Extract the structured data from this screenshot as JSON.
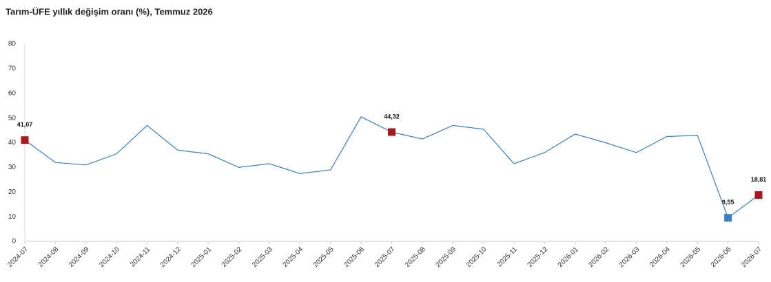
{
  "chart_data": {
    "type": "line",
    "title": "Tarım-ÜFE yıllık değişim oranı (%), Temmuz 2026",
    "categories": [
      "2024-07",
      "2024-08",
      "2024-09",
      "2024-10",
      "2024-11",
      "2024-12",
      "2025-01",
      "2025-02",
      "2025-03",
      "2025-04",
      "2025-05",
      "2025-06",
      "2025-07",
      "2025-08",
      "2025-09",
      "2025-10",
      "2025-11",
      "2025-12",
      "2026-01",
      "2026-02",
      "2026-03",
      "2026-04",
      "2026-05",
      "2026-06",
      "2026-07"
    ],
    "series": [
      {
        "color": "#3a7fc1",
        "values": [
          41.07,
          32,
          31,
          35.5,
          47,
          37,
          35.5,
          30,
          31.5,
          27.5,
          29,
          50.5,
          44.32,
          41.5,
          47,
          45.5,
          31.5,
          36,
          43.5,
          40,
          36,
          42.5,
          43,
          9.55,
          18.81
        ],
        "value_labels": [
          "41,07",
          null,
          null,
          null,
          null,
          null,
          null,
          null,
          null,
          null,
          null,
          null,
          "44,32",
          null,
          null,
          null,
          null,
          null,
          null,
          null,
          null,
          null,
          null,
          "9,55",
          "18,81"
        ],
        "marker_colors": [
          "#a8191e",
          null,
          null,
          null,
          null,
          null,
          null,
          null,
          null,
          null,
          null,
          null,
          "#a8191e",
          null,
          null,
          null,
          null,
          null,
          null,
          null,
          null,
          null,
          null,
          "#3a7fc1",
          "#a8191e"
        ]
      }
    ],
    "ylim": [
      0,
      80
    ],
    "yticks": [
      0,
      10,
      20,
      30,
      40,
      50,
      60,
      70,
      80
    ],
    "grid": false
  }
}
